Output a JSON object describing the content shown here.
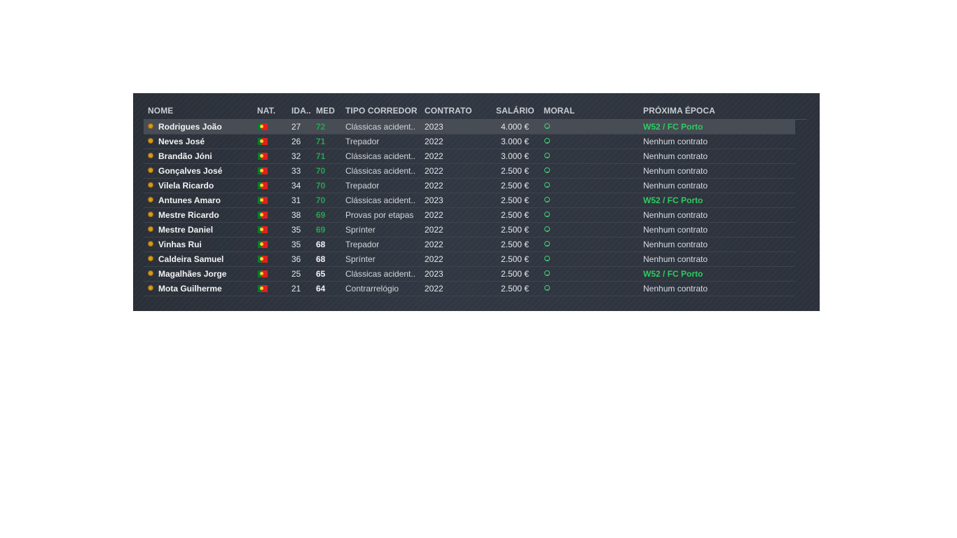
{
  "columns": {
    "name": "NOME",
    "nat": "NAT.",
    "age": "IDA..",
    "med": "MED",
    "type": "TIPO CORREDOR",
    "contract": "CONTRATO",
    "salary": "SALÁRIO",
    "moral": "MORAL",
    "next": "PRÓXIMA ÉPOCA"
  },
  "colors": {
    "med_green": "#27a351",
    "med_white": "#f2f3f5",
    "next_green": "#2ecc5f",
    "moral_green": "#3fcf70"
  },
  "icons": {
    "rider": "rider-badge-icon",
    "flag": "portugal-flag-icon",
    "moral": "smiley-icon"
  },
  "rows": [
    {
      "name": "Rodrigues João",
      "age": "27",
      "med": "72",
      "med_green": true,
      "type": "Clássicas acident..",
      "contract": "2023",
      "salary": "4.000 €",
      "next": "W52 / FC Porto",
      "next_green": true,
      "selected": true
    },
    {
      "name": "Neves José",
      "age": "26",
      "med": "71",
      "med_green": true,
      "type": "Trepador",
      "contract": "2022",
      "salary": "3.000 €",
      "next": "Nenhum contrato",
      "next_green": false
    },
    {
      "name": "Brandão Jóni",
      "age": "32",
      "med": "71",
      "med_green": true,
      "type": "Clássicas acident..",
      "contract": "2022",
      "salary": "3.000 €",
      "next": "Nenhum contrato",
      "next_green": false
    },
    {
      "name": "Gonçalves José",
      "age": "33",
      "med": "70",
      "med_green": true,
      "type": "Clássicas acident..",
      "contract": "2022",
      "salary": "2.500 €",
      "next": "Nenhum contrato",
      "next_green": false
    },
    {
      "name": "Vilela Ricardo",
      "age": "34",
      "med": "70",
      "med_green": true,
      "type": "Trepador",
      "contract": "2022",
      "salary": "2.500 €",
      "next": "Nenhum contrato",
      "next_green": false
    },
    {
      "name": "Antunes Amaro",
      "age": "31",
      "med": "70",
      "med_green": true,
      "type": "Clássicas acident..",
      "contract": "2023",
      "salary": "2.500 €",
      "next": "W52 / FC Porto",
      "next_green": true
    },
    {
      "name": "Mestre Ricardo",
      "age": "38",
      "med": "69",
      "med_green": true,
      "type": "Provas por etapas",
      "contract": "2022",
      "salary": "2.500 €",
      "next": "Nenhum contrato",
      "next_green": false
    },
    {
      "name": "Mestre Daniel",
      "age": "35",
      "med": "69",
      "med_green": true,
      "type": "Sprínter",
      "contract": "2022",
      "salary": "2.500 €",
      "next": "Nenhum contrato",
      "next_green": false
    },
    {
      "name": "Vinhas Rui",
      "age": "35",
      "med": "68",
      "med_green": false,
      "type": "Trepador",
      "contract": "2022",
      "salary": "2.500 €",
      "next": "Nenhum contrato",
      "next_green": false
    },
    {
      "name": "Caldeira Samuel",
      "age": "36",
      "med": "68",
      "med_green": false,
      "type": "Sprínter",
      "contract": "2022",
      "salary": "2.500 €",
      "next": "Nenhum contrato",
      "next_green": false
    },
    {
      "name": "Magalhães Jorge",
      "age": "25",
      "med": "65",
      "med_green": false,
      "type": "Clássicas acident..",
      "contract": "2023",
      "salary": "2.500 €",
      "next": "W52 / FC Porto",
      "next_green": true
    },
    {
      "name": "Mota Guilherme",
      "age": "21",
      "med": "64",
      "med_green": false,
      "type": "Contrarrelógio",
      "contract": "2022",
      "salary": "2.500 €",
      "next": "Nenhum contrato",
      "next_green": false
    }
  ]
}
